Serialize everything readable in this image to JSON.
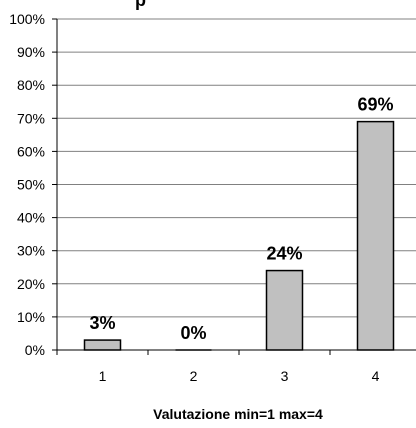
{
  "chart_data": {
    "type": "bar",
    "title": "",
    "xlabel": "Valutazione min=1 max=4",
    "ylabel": "",
    "categories": [
      "1",
      "2",
      "3",
      "4"
    ],
    "values": [
      3,
      0,
      24,
      69
    ],
    "data_labels": [
      "3%",
      "0%",
      "24%",
      "69%"
    ],
    "yticks": [
      "0%",
      "10%",
      "20%",
      "30%",
      "40%",
      "50%",
      "60%",
      "70%",
      "80%",
      "90%",
      "100%"
    ],
    "ylim": [
      0,
      100
    ],
    "grid": true,
    "bar_color": "#c0c0c0",
    "bar_edge_color": "#000000",
    "grid_color": "#808080",
    "legend": "none"
  }
}
